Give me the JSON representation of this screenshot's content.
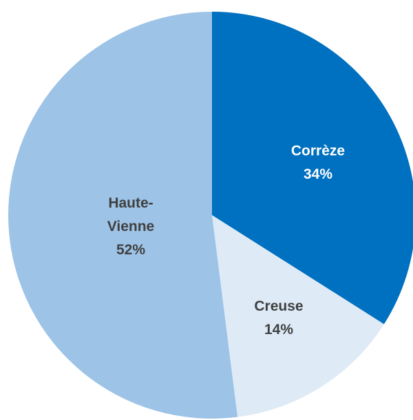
{
  "chart_data": {
    "type": "pie",
    "categories": [
      "Corrèze",
      "Creuse",
      "Haute-Vienne"
    ],
    "values": [
      34,
      14,
      52
    ],
    "value_labels": [
      "34%",
      "14%",
      "52%"
    ],
    "colors": [
      "#0070c0",
      "#deebf7",
      "#9dc3e6"
    ]
  }
}
